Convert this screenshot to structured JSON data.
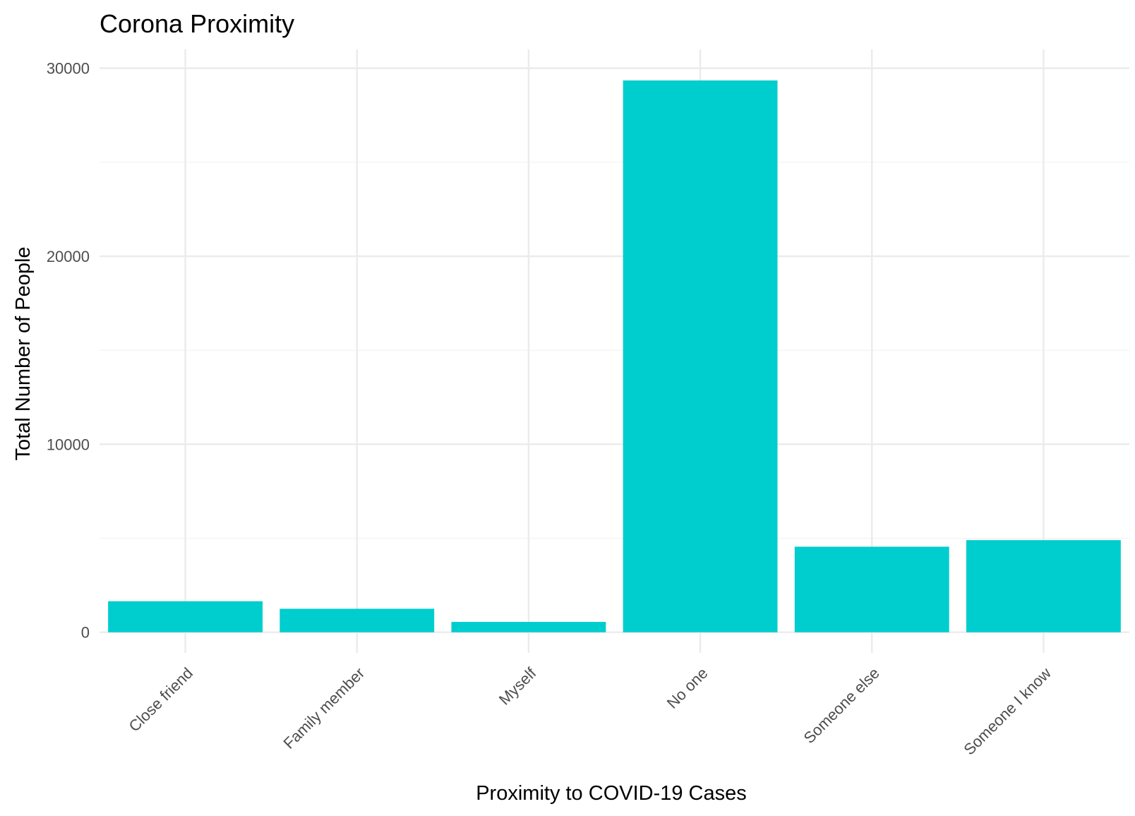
{
  "chart_data": {
    "type": "bar",
    "title": "Corona Proximity",
    "xlabel": "Proximity to COVID-19 Cases",
    "ylabel": "Total Number of People",
    "categories": [
      "Close friend",
      "Family member",
      "Myself",
      "No one",
      "Someone else",
      "Someone I know"
    ],
    "values": [
      1650,
      1250,
      550,
      29350,
      4550,
      4900
    ],
    "yticks": [
      0,
      10000,
      20000,
      30000
    ],
    "ytick_labels": [
      "0",
      "10000",
      "20000",
      "30000"
    ],
    "ylim": [
      -1100,
      31000
    ],
    "bar_color": "#00CDCD",
    "grid": true
  }
}
